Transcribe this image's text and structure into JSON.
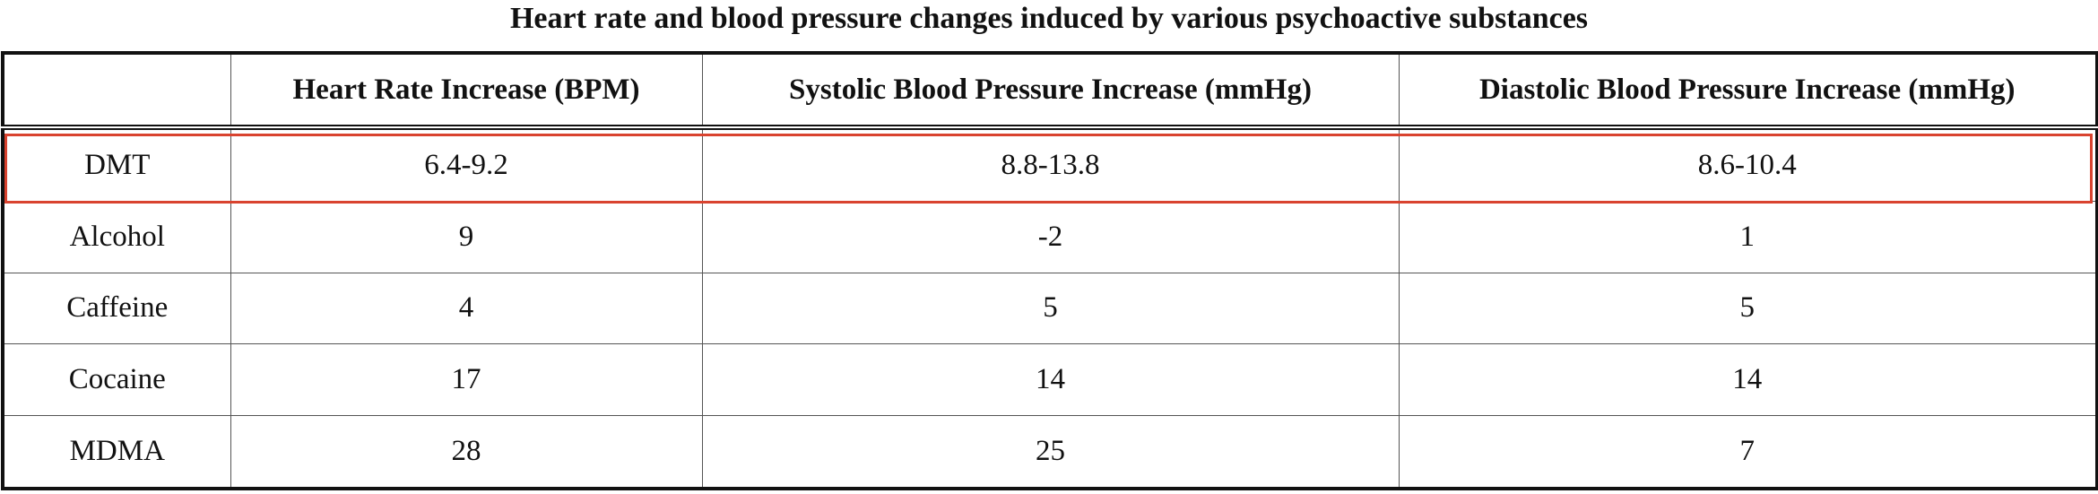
{
  "title": "Heart rate and blood pressure changes induced by various psychoactive substances",
  "table": {
    "headers": [
      "",
      "Heart Rate Increase (BPM)",
      "Systolic Blood Pressure Increase (mmHg)",
      "Diastolic Blood Pressure Increase (mmHg)"
    ],
    "rows": [
      [
        "DMT",
        "6.4-9.2",
        "8.8-13.8",
        "8.6-10.4"
      ],
      [
        "Alcohol",
        "9",
        "-2",
        "1"
      ],
      [
        "Caffeine",
        "4",
        "5",
        "5"
      ],
      [
        "Cocaine",
        "17",
        "14",
        "14"
      ],
      [
        "MDMA",
        "28",
        "25",
        "7"
      ]
    ],
    "highlighted_row": "DMT"
  },
  "colors": {
    "highlight": "#d9432f",
    "border": "#111111"
  }
}
